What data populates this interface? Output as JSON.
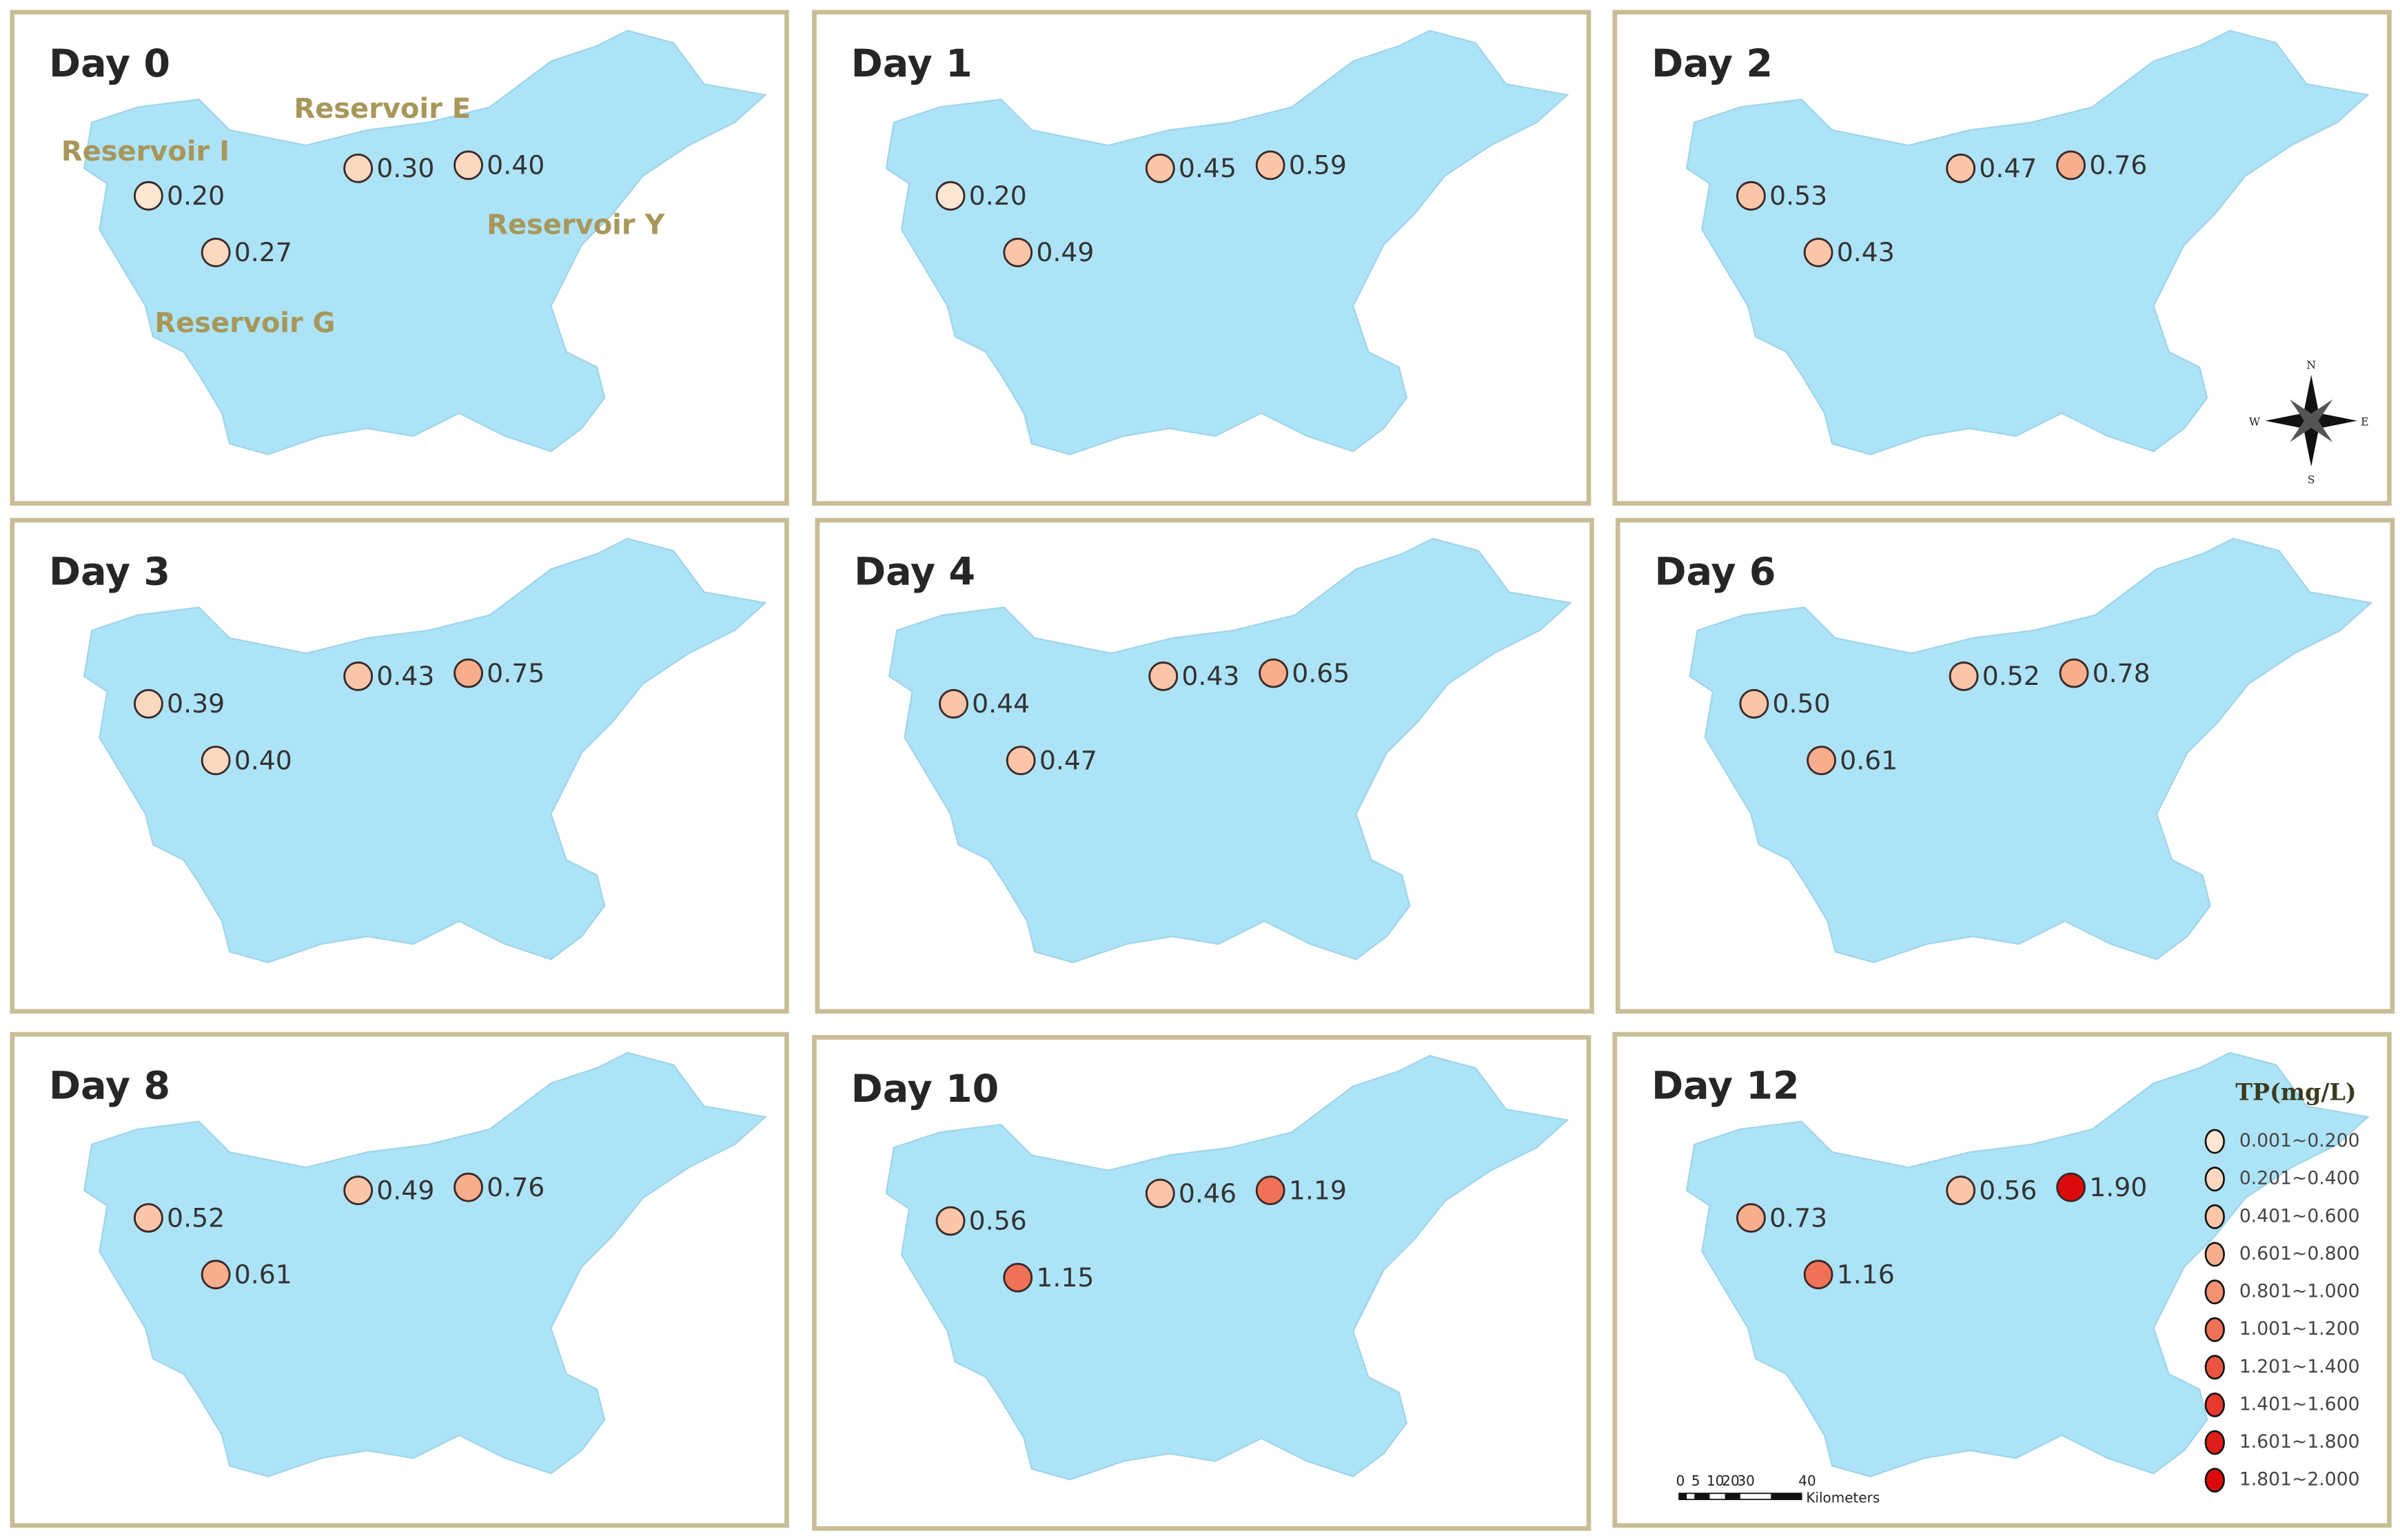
{
  "panels": [
    {
      "title": "Day 0",
      "values": [
        "0.20",
        "0.27",
        "0.30",
        "0.40"
      ]
    },
    {
      "title": "Day 1",
      "values": [
        "0.20",
        "0.49",
        "0.45",
        "0.59"
      ]
    },
    {
      "title": "Day 2",
      "values": [
        "0.53",
        "0.43",
        "0.47",
        "0.76"
      ]
    },
    {
      "title": "Day 3",
      "values": [
        "0.39",
        "0.40",
        "0.43",
        "0.75"
      ]
    },
    {
      "title": "Day 4",
      "values": [
        "0.44",
        "0.47",
        "0.43",
        "0.65"
      ]
    },
    {
      "title": "Day 6",
      "values": [
        "0.50",
        "0.61",
        "0.52",
        "0.78"
      ]
    },
    {
      "title": "Day 8",
      "values": [
        "0.52",
        "0.61",
        "0.49",
        "0.76"
      ]
    },
    {
      "title": "Day 10",
      "values": [
        "0.56",
        "1.15",
        "0.46",
        "1.19"
      ]
    },
    {
      "title": "Day 12",
      "values": [
        "0.73",
        "1.16",
        "0.56",
        "1.90"
      ]
    }
  ],
  "reservoirs": [
    "Reservoir I",
    "Reservoir G",
    "Reservoir E",
    "Reservoir Y"
  ],
  "legend": {
    "title": "TP(mg/L)",
    "classes": [
      {
        "label": "0.001~0.200",
        "color": "#fde6d2"
      },
      {
        "label": "0.201~0.400",
        "color": "#fcd8be"
      },
      {
        "label": "0.401~0.600",
        "color": "#fbc6a8"
      },
      {
        "label": "0.601~0.800",
        "color": "#f8ad8c"
      },
      {
        "label": "0.801~1.000",
        "color": "#f49374"
      },
      {
        "label": "1.001~1.200",
        "color": "#ef7257"
      },
      {
        "label": "1.201~1.400",
        "color": "#ea5440"
      },
      {
        "label": "1.401~1.600",
        "color": "#e6382c"
      },
      {
        "label": "1.601~1.800",
        "color": "#e11e1a"
      },
      {
        "label": "1.801~2.000",
        "color": "#dc0a0a"
      }
    ]
  },
  "compass": [
    "N",
    "E",
    "S",
    "W"
  ],
  "scale_bar": {
    "ticks": [
      "0",
      "5",
      "10",
      "20",
      "30",
      "40"
    ],
    "unit": "Kilometers"
  }
}
